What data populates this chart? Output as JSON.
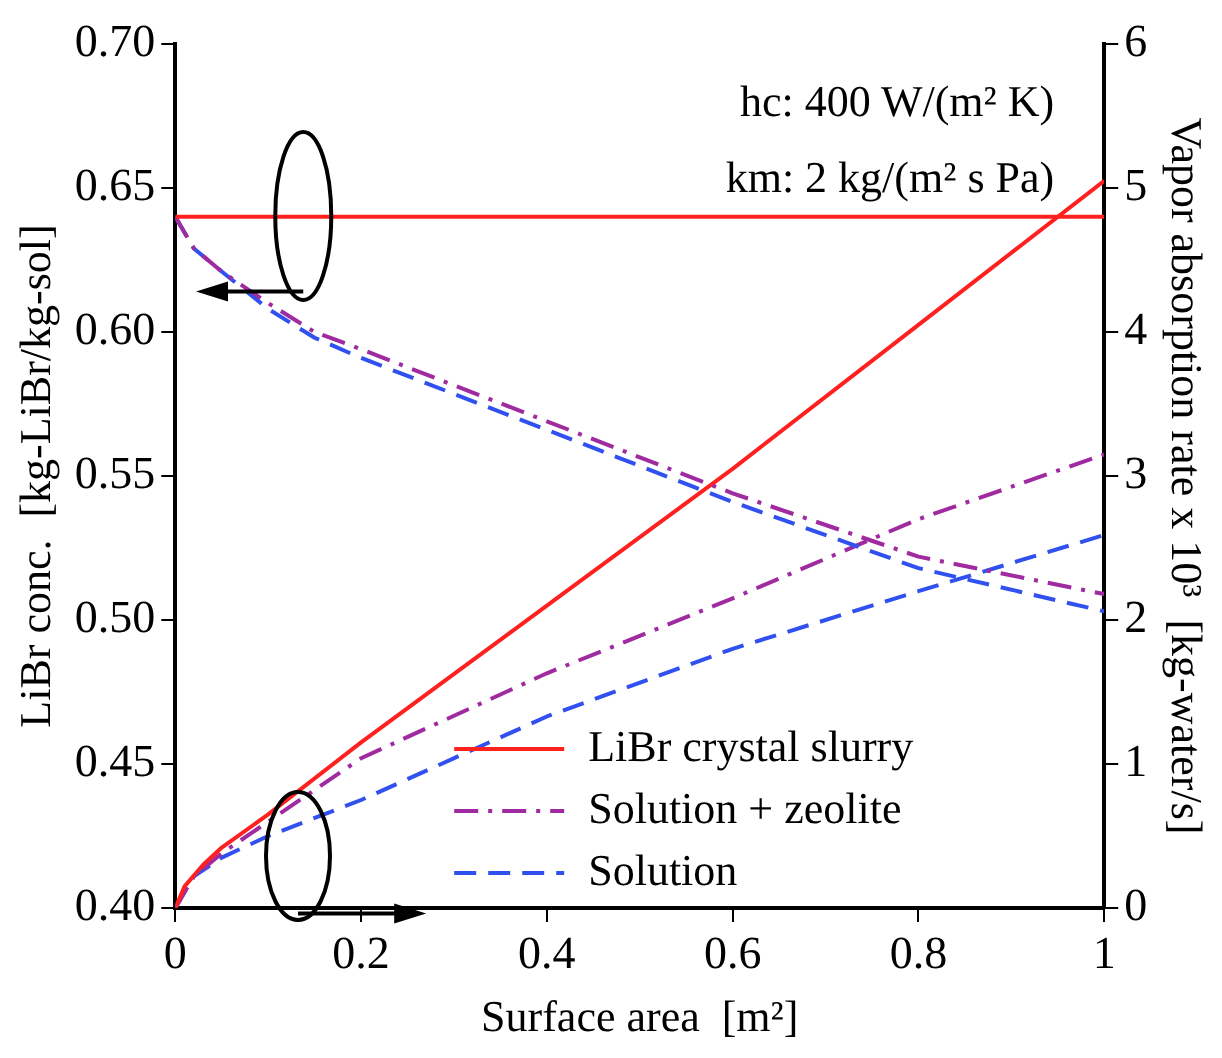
{
  "chart_data": {
    "type": "line",
    "xlabel": "Surface area  [m²]",
    "ylabel": "LiBr conc.  [kg-LiBr/kg-sol]",
    "y2label": "Vapor absorption rate x 10³  [kg-water/s]",
    "annotations": [
      "hc: 400 W/(m² K)",
      "km: 2 kg/(m² s Pa)"
    ],
    "xlim": [
      0,
      1
    ],
    "xticks": [
      0,
      0.2,
      0.4,
      0.6,
      0.8,
      1
    ],
    "ylim": [
      0.4,
      0.7
    ],
    "yticks": [
      {
        "value": 0.4,
        "label": "0.40"
      },
      0.45,
      {
        "value": 0.5,
        "label": "0.50"
      },
      0.55,
      {
        "value": 0.6,
        "label": "0.60"
      },
      0.65,
      {
        "value": 0.7,
        "label": "0.70"
      }
    ],
    "y2lim": [
      0,
      6
    ],
    "y2ticks": [
      0,
      1,
      2,
      3,
      4,
      5,
      6
    ],
    "grid": false,
    "legend": "bottom right",
    "marker": "none",
    "series": [
      {
        "name": "LiBr crystal slurry",
        "color": "#ff2020",
        "line_style": "solid",
        "x": [
          0,
          1
        ],
        "values": [
          0.64,
          0.64
        ]
      },
      {
        "name": "Solution + zeolite",
        "color": "#a02aa0",
        "line_style": "dashdot",
        "x": [
          0,
          0.02,
          0.05,
          0.1,
          0.15,
          0.2,
          0.4,
          0.6,
          0.8,
          1
        ],
        "values": [
          0.64,
          0.629,
          0.621,
          0.61,
          0.6,
          0.594,
          0.569,
          0.544,
          0.522,
          0.509
        ]
      },
      {
        "name": "Solution",
        "color": "#3050f0",
        "line_style": "dashed",
        "x": [
          0,
          0.02,
          0.05,
          0.1,
          0.15,
          0.2,
          0.4,
          0.6,
          0.8,
          1
        ],
        "values": [
          0.64,
          0.629,
          0.621,
          0.608,
          0.598,
          0.591,
          0.566,
          0.541,
          0.518,
          0.503
        ]
      },
      {
        "color": "#ff2020",
        "line_style": "solid",
        "axis": "y2",
        "x": [
          0,
          0.01,
          0.03,
          0.05,
          0.1,
          0.2,
          0.4,
          0.6,
          0.8,
          1
        ],
        "values": [
          0,
          0.15,
          0.3,
          0.42,
          0.65,
          1.15,
          2.1,
          3.05,
          4.05,
          5.05
        ]
      },
      {
        "color": "#a02aa0",
        "line_style": "dashdot",
        "axis": "y2",
        "x": [
          0,
          0.02,
          0.05,
          0.1,
          0.2,
          0.4,
          0.6,
          0.8,
          1
        ],
        "values": [
          0,
          0.22,
          0.38,
          0.6,
          1.04,
          1.63,
          2.15,
          2.7,
          3.15
        ]
      },
      {
        "color": "#3050f0",
        "line_style": "dashed",
        "axis": "y2",
        "x": [
          0,
          0.02,
          0.05,
          0.1,
          0.2,
          0.4,
          0.6,
          0.8,
          1
        ],
        "values": [
          0,
          0.22,
          0.35,
          0.5,
          0.75,
          1.33,
          1.8,
          2.2,
          2.59
        ]
      }
    ]
  }
}
